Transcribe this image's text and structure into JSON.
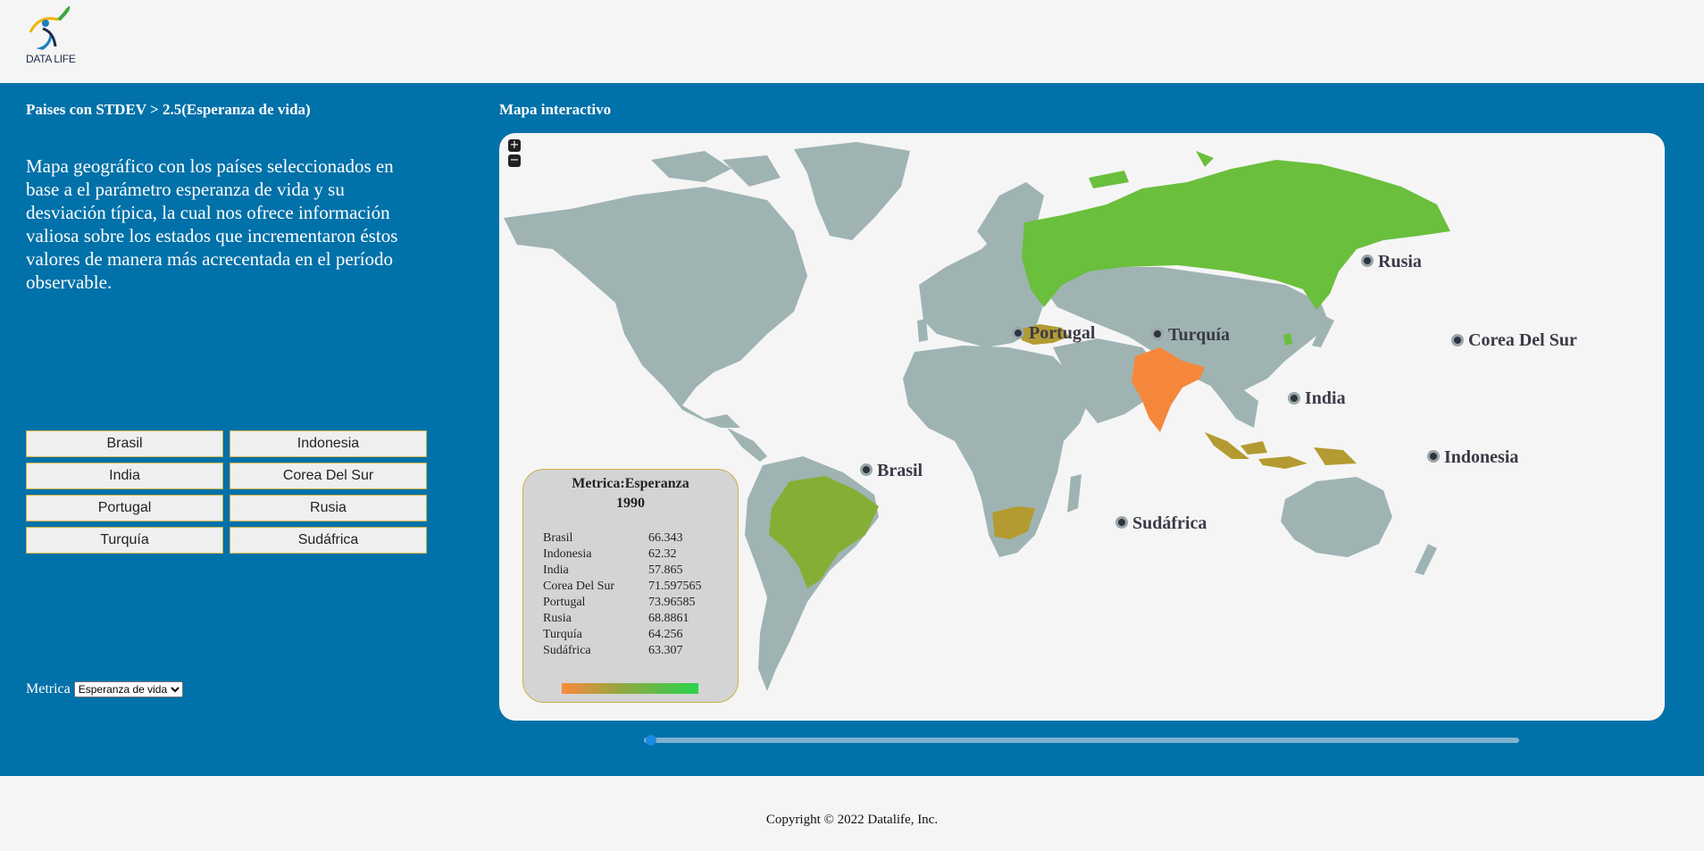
{
  "header": {
    "logo_text": "DATA LIFE"
  },
  "left": {
    "title": "Paises con STDEV > 2.5(Esperanza de vida)",
    "description": "Mapa geográfico con los países seleccionados en base a el parámetro esperanza de vida y su desviación típica, la cual nos ofrece información valiosa sobre los estados que incrementaron éstos valores de manera más acrecentada en el período observable.",
    "buttons": [
      "Brasil",
      "Indonesia",
      "India",
      "Corea Del Sur",
      "Portugal",
      "Rusia",
      "Turquía",
      "Sudáfrica"
    ],
    "metric_label": "Metrica",
    "metric_selected": "Esperanza de vida"
  },
  "map": {
    "title": "Mapa interactivo",
    "zoom_in": "+",
    "zoom_out": "−",
    "labels": [
      "Rusia",
      "Portugal",
      "Turquía",
      "Corea Del Sur",
      "India",
      "Indonesia",
      "Brasil",
      "Sudáfrica"
    ],
    "colors": {
      "land": "#9fb3b3",
      "rusia": "#6abf3c",
      "india": "#f5873b",
      "brasil": "#86ae35",
      "olive": "#b39b31"
    }
  },
  "legend": {
    "title_line1": "Metrica:Esperanza",
    "title_line2": "1990",
    "rows": [
      {
        "country": "Brasil",
        "value": "66.343"
      },
      {
        "country": "Indonesia",
        "value": "62.32"
      },
      {
        "country": "India",
        "value": "57.865"
      },
      {
        "country": "Corea Del Sur",
        "value": "71.597565"
      },
      {
        "country": "Portugal",
        "value": "73.96585"
      },
      {
        "country": "Rusia",
        "value": "68.8861"
      },
      {
        "country": "Turquía",
        "value": "64.256"
      },
      {
        "country": "Sudáfrica",
        "value": "63.307"
      }
    ]
  },
  "slider": {
    "position": 0.0
  },
  "footer": {
    "copyright": "Copyright © 2022 Datalife, Inc."
  }
}
